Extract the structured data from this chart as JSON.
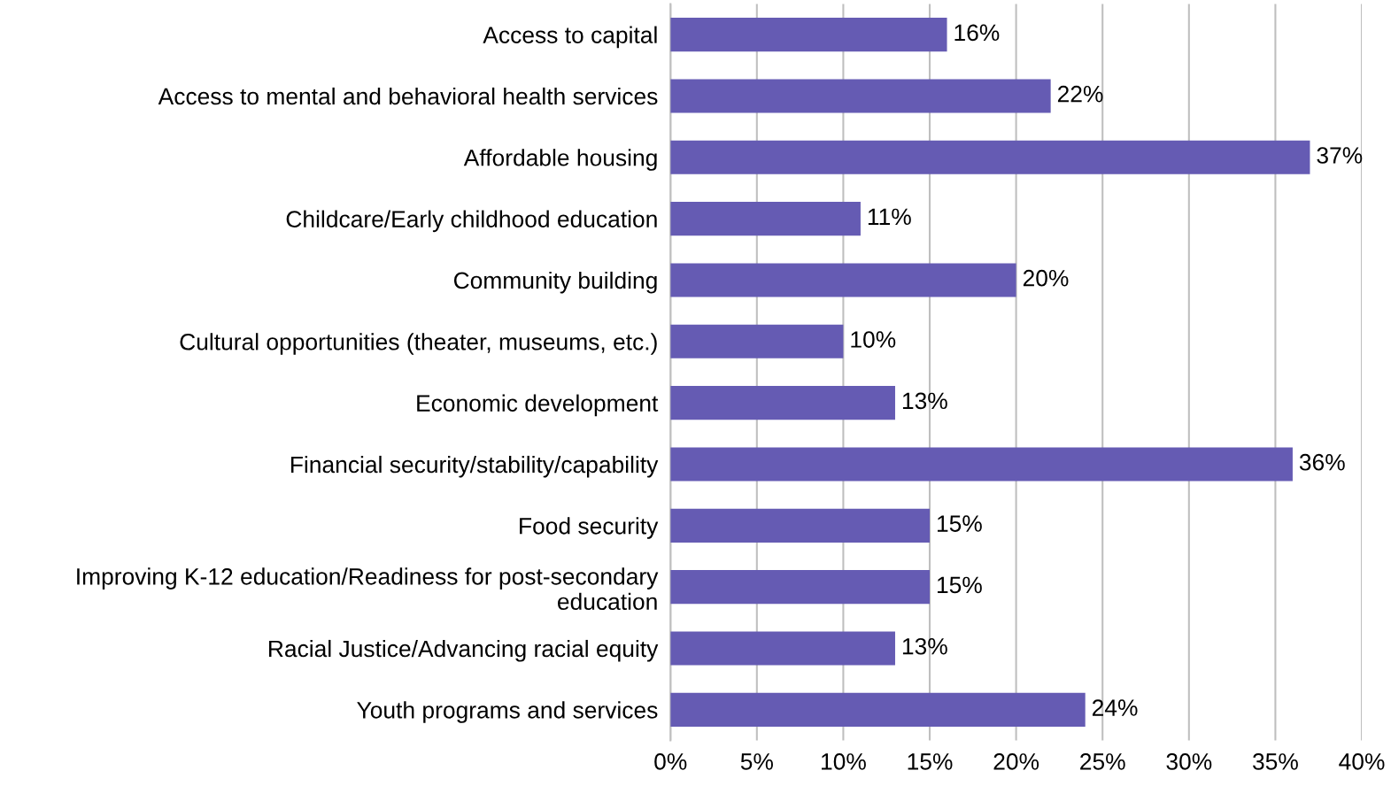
{
  "chart_data": {
    "type": "bar",
    "orientation": "horizontal",
    "categories": [
      "Access to capital",
      "Access to mental and behavioral health services",
      "Affordable housing",
      "Childcare/Early childhood education",
      "Community building",
      "Cultural opportunities (theater, museums, etc.)",
      "Economic development",
      "Financial security/stability/capability",
      "Food security",
      "Improving K-12 education/Readiness for post-secondary education",
      "Racial Justice/Advancing racial equity",
      "Youth programs and services"
    ],
    "values": [
      16,
      22,
      37,
      11,
      20,
      10,
      13,
      36,
      15,
      15,
      13,
      24
    ],
    "color": "#655bb3",
    "value_labels": [
      "16%",
      "22%",
      "37%",
      "11%",
      "20%",
      "10%",
      "13%",
      "36%",
      "15%",
      "15%",
      "13%",
      "24%"
    ],
    "xlim": [
      0,
      40
    ],
    "xticks": [
      {
        "value": 0,
        "label": "0%"
      },
      {
        "value": 5,
        "label": "5%"
      },
      {
        "value": 10,
        "label": "10%"
      },
      {
        "value": 15,
        "label": "15%"
      },
      {
        "value": 20,
        "label": "20%"
      },
      {
        "value": 25,
        "label": "25%"
      },
      {
        "value": 30,
        "label": "30%"
      },
      {
        "value": 35,
        "label": "35%"
      },
      {
        "value": 40,
        "label": "40%"
      }
    ],
    "grid": "x"
  }
}
